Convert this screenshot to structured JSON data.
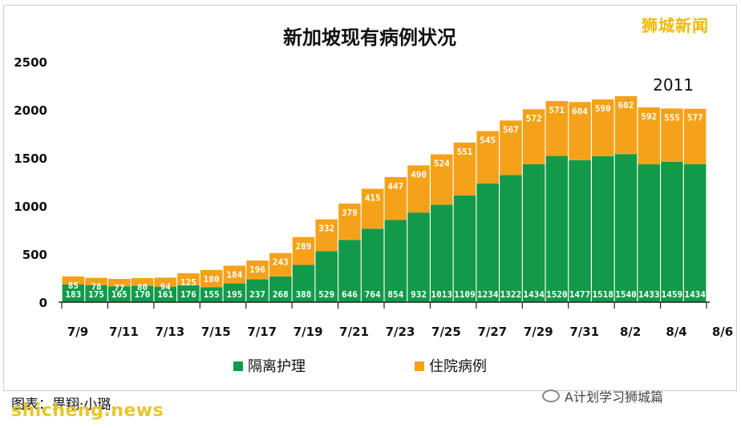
{
  "branding": {
    "top_right": "狮城新闻"
  },
  "caption": {
    "text": "图表：畀翔·小璐"
  },
  "footer": {
    "account": "A计划学习狮城篇"
  },
  "watermark": {
    "text": "shicheng.news"
  },
  "chart_data": {
    "type": "bar",
    "stacked": true,
    "title": "新加坡现有病例状况",
    "annotation": "2011",
    "categories": [
      "7/9",
      "7/10",
      "7/11",
      "7/12",
      "7/13",
      "7/14",
      "7/15",
      "7/16",
      "7/17",
      "7/18",
      "7/19",
      "7/20",
      "7/21",
      "7/22",
      "7/23",
      "7/24",
      "7/25",
      "7/26",
      "7/27",
      "7/28",
      "7/29",
      "7/30",
      "7/31",
      "8/1",
      "8/2",
      "8/3",
      "8/4",
      "8/5"
    ],
    "xtick_labels": [
      "7/9",
      "7/11",
      "7/13",
      "7/15",
      "7/17",
      "7/19",
      "7/21",
      "7/23",
      "7/25",
      "7/27",
      "7/29",
      "7/31",
      "8/2",
      "8/4",
      "8/6"
    ],
    "series": [
      {
        "name": "隔离护理",
        "color": "#129a4a",
        "values": [
          183,
          175,
          165,
          170,
          161,
          176,
          155,
          195,
          237,
          268,
          388,
          529,
          646,
          764,
          854,
          932,
          1013,
          1109,
          1234,
          1322,
          1434,
          1520,
          1477,
          1518,
          1540,
          1433,
          1459,
          1434
        ]
      },
      {
        "name": "住院病例",
        "color": "#f5a21a",
        "values": [
          85,
          78,
          77,
          80,
          94,
          125,
          180,
          184,
          196,
          243,
          289,
          332,
          379,
          415,
          447,
          490,
          524,
          551,
          545,
          567,
          572,
          571,
          604,
          590,
          602,
          592,
          555,
          577
        ]
      }
    ],
    "ylim": [
      0,
      2500
    ],
    "yticks": [
      0,
      500,
      1000,
      1500,
      2000,
      2500
    ],
    "legend_position": "bottom",
    "grid": false
  }
}
